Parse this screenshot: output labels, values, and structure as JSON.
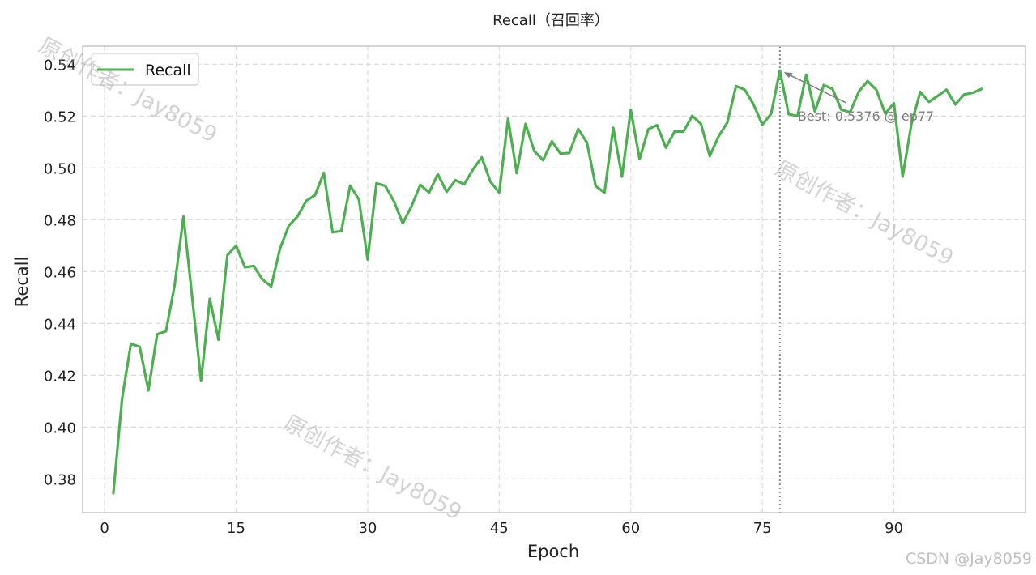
{
  "chart_data": {
    "type": "line",
    "title": "Recall（召回率）",
    "xlabel": "Epoch",
    "ylabel": "Recall",
    "xlim": [
      -2.5,
      105
    ],
    "ylim": [
      0.367,
      0.547
    ],
    "x_ticks": [
      0,
      15,
      30,
      45,
      60,
      75,
      90
    ],
    "y_ticks": [
      0.38,
      0.4,
      0.42,
      0.44,
      0.46,
      0.48,
      0.5,
      0.52,
      0.54
    ],
    "grid": true,
    "legend": "top-left",
    "series": [
      {
        "name": "Recall",
        "color": "#4caf50",
        "x": [
          1,
          2,
          3,
          4,
          5,
          6,
          7,
          8,
          9,
          10,
          11,
          12,
          13,
          14,
          15,
          16,
          17,
          18,
          19,
          20,
          21,
          22,
          23,
          24,
          25,
          26,
          27,
          28,
          29,
          30,
          31,
          32,
          33,
          34,
          35,
          36,
          37,
          38,
          39,
          40,
          41,
          42,
          43,
          44,
          45,
          46,
          47,
          48,
          49,
          50,
          51,
          52,
          53,
          54,
          55,
          56,
          57,
          58,
          59,
          60,
          61,
          62,
          63,
          64,
          65,
          66,
          67,
          68,
          69,
          70,
          71,
          72,
          73,
          74,
          75,
          76,
          77,
          78,
          79,
          80,
          81,
          82,
          83,
          84,
          85,
          86,
          87,
          88,
          89,
          90,
          91,
          92,
          93,
          94,
          95,
          96,
          97,
          98,
          99,
          100
        ],
        "values": [
          0.3745,
          0.411,
          0.4322,
          0.431,
          0.4142,
          0.4358,
          0.437,
          0.455,
          0.4812,
          0.45,
          0.4178,
          0.4495,
          0.4337,
          0.4663,
          0.47,
          0.4617,
          0.4622,
          0.457,
          0.4543,
          0.4688,
          0.4777,
          0.4813,
          0.4873,
          0.4895,
          0.4981,
          0.4752,
          0.4757,
          0.4932,
          0.4878,
          0.4647,
          0.4941,
          0.4931,
          0.4871,
          0.4787,
          0.4852,
          0.4935,
          0.4905,
          0.4976,
          0.4908,
          0.4953,
          0.4937,
          0.4993,
          0.5041,
          0.4947,
          0.4905,
          0.519,
          0.498,
          0.517,
          0.5065,
          0.503,
          0.5103,
          0.5055,
          0.5058,
          0.515,
          0.5098,
          0.493,
          0.4905,
          0.5155,
          0.4967,
          0.5225,
          0.5034,
          0.515,
          0.5165,
          0.5078,
          0.5141,
          0.514,
          0.5201,
          0.517,
          0.5046,
          0.5121,
          0.5175,
          0.5316,
          0.5302,
          0.5245,
          0.5167,
          0.5209,
          0.5376,
          0.5208,
          0.52,
          0.536,
          0.5218,
          0.532,
          0.5305,
          0.5225,
          0.5215,
          0.5295,
          0.5335,
          0.5302,
          0.521,
          0.525,
          0.4967,
          0.517,
          0.5293,
          0.5255,
          0.5278,
          0.5302,
          0.5245,
          0.5283,
          0.529,
          0.5305
        ]
      }
    ],
    "best": {
      "x": 77,
      "y": 0.5376,
      "label": "Best: 0.5376 @ ep77"
    }
  },
  "watermarks": [
    "原创作者：Jay8059",
    "原创作者：Jay8059",
    "原创作者：Jay8059"
  ],
  "credit": "CSDN @Jay8059"
}
